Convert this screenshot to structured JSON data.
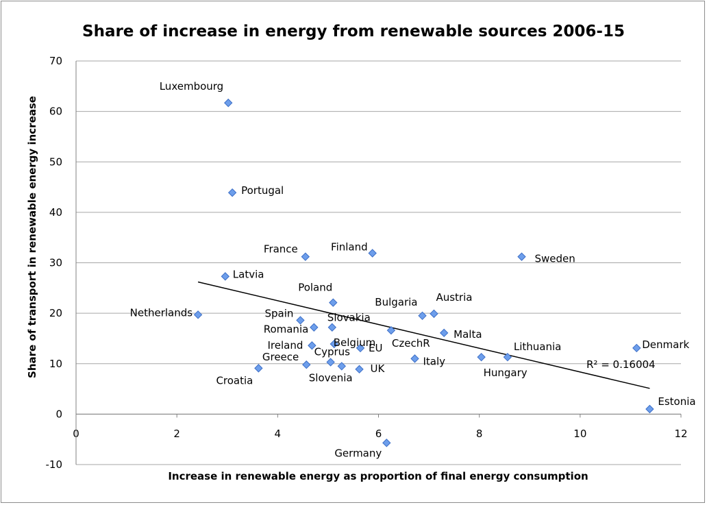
{
  "chart_data": {
    "type": "scatter",
    "title": "Share of increase in energy from renewable sources 2006-15",
    "xlabel": "Increase in renewable energy as proportion of final energy consumption",
    "ylabel": "Share of transport in renewable energy increase",
    "xlim": [
      0,
      12
    ],
    "ylim": [
      -10,
      70
    ],
    "x_ticks": [
      "0",
      "2",
      "4",
      "6",
      "8",
      "10",
      "12"
    ],
    "y_ticks": [
      "-10",
      "0",
      "10",
      "20",
      "30",
      "40",
      "50",
      "60",
      "70"
    ],
    "grid": "horizontal",
    "marker": "diamond",
    "marker_color": "#6d9eeb",
    "trendline": {
      "type": "linear",
      "x": [
        2.42,
        11.38
      ],
      "y": [
        26.2,
        5.1
      ],
      "r2_label": "R² = 0.16004"
    },
    "points": [
      {
        "label": "Luxembourg",
        "x": 3.02,
        "y": 61.7
      },
      {
        "label": "Portugal",
        "x": 3.1,
        "y": 43.9
      },
      {
        "label": "France",
        "x": 4.55,
        "y": 31.2
      },
      {
        "label": "Finland",
        "x": 5.88,
        "y": 31.9
      },
      {
        "label": "Sweden",
        "x": 8.84,
        "y": 31.2
      },
      {
        "label": "Latvia",
        "x": 2.96,
        "y": 27.3
      },
      {
        "label": "Poland",
        "x": 5.1,
        "y": 22.1
      },
      {
        "label": "Netherlands",
        "x": 2.42,
        "y": 19.7
      },
      {
        "label": "Bulgaria",
        "x": 6.87,
        "y": 19.5
      },
      {
        "label": "Austria",
        "x": 7.1,
        "y": 19.9
      },
      {
        "label": "Spain",
        "x": 4.45,
        "y": 18.6
      },
      {
        "label": "Slovakia",
        "x": 5.08,
        "y": 17.2
      },
      {
        "label": "Romania",
        "x": 4.72,
        "y": 17.2
      },
      {
        "label": "CzechR",
        "x": 6.25,
        "y": 16.6
      },
      {
        "label": "Malta",
        "x": 7.3,
        "y": 16.1
      },
      {
        "label": "Belgium",
        "x": 5.12,
        "y": 13.9
      },
      {
        "label": "Ireland",
        "x": 4.68,
        "y": 13.6
      },
      {
        "label": "EU",
        "x": 5.64,
        "y": 13.1
      },
      {
        "label": "Denmark",
        "x": 11.12,
        "y": 13.1
      },
      {
        "label": "Lithuania",
        "x": 8.56,
        "y": 11.3
      },
      {
        "label": "Hungary",
        "x": 8.04,
        "y": 11.3
      },
      {
        "label": "Italy",
        "x": 6.72,
        "y": 11.0
      },
      {
        "label": "Cyprus",
        "x": 5.05,
        "y": 10.3
      },
      {
        "label": "Greece",
        "x": 4.57,
        "y": 9.8
      },
      {
        "label": "Slovenia",
        "x": 5.27,
        "y": 9.5
      },
      {
        "label": "UK",
        "x": 5.62,
        "y": 8.9
      },
      {
        "label": "Croatia",
        "x": 3.62,
        "y": 9.1
      },
      {
        "label": "Estonia",
        "x": 11.38,
        "y": 1.0
      },
      {
        "label": "Germany",
        "x": 6.16,
        "y": -5.7
      }
    ]
  }
}
